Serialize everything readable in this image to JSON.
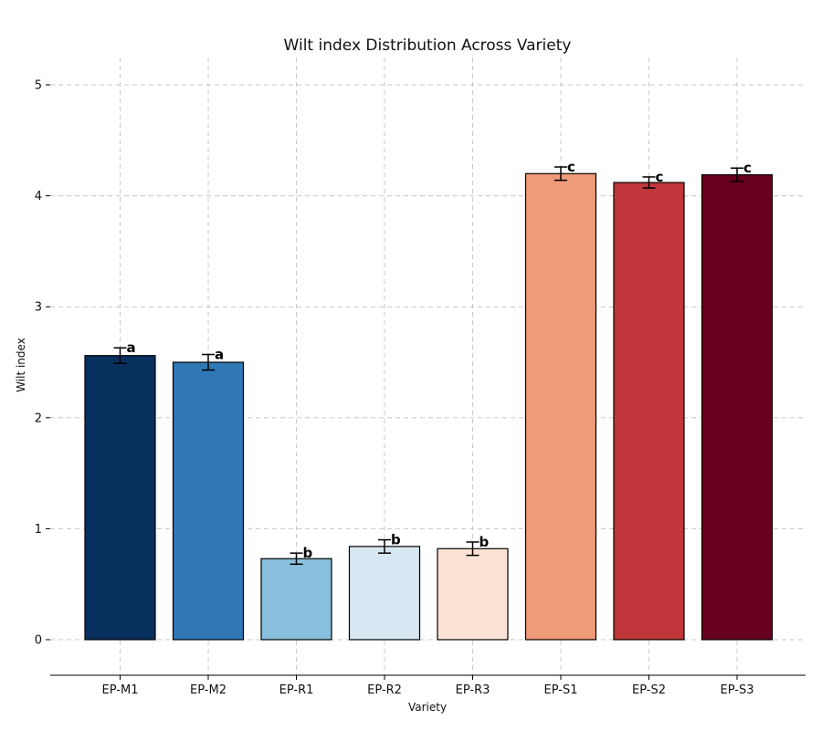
{
  "chart_data": {
    "type": "bar",
    "title": "Wilt index Distribution Across Variety",
    "xlabel": "Variety",
    "ylabel": "Wilt index",
    "ylim": [
      -0.3,
      5.25
    ],
    "yticks": [
      0,
      1,
      2,
      3,
      4,
      5
    ],
    "grid": true,
    "categories": [
      "EP-M1",
      "EP-M2",
      "EP-R1",
      "EP-R2",
      "EP-R3",
      "EP-S1",
      "EP-S2",
      "EP-S3"
    ],
    "values": [
      2.56,
      2.5,
      0.73,
      0.84,
      0.82,
      4.2,
      4.12,
      4.19
    ],
    "errors": [
      0.07,
      0.07,
      0.05,
      0.06,
      0.06,
      0.06,
      0.05,
      0.06
    ],
    "significance": [
      "a",
      "a",
      "b",
      "b",
      "b",
      "c",
      "c",
      "c"
    ],
    "colors": [
      "#08305e",
      "#2f78b5",
      "#88bfdc",
      "#d8e8f2",
      "#fbe2d4",
      "#ef9a78",
      "#c1363a",
      "#67001f"
    ]
  }
}
